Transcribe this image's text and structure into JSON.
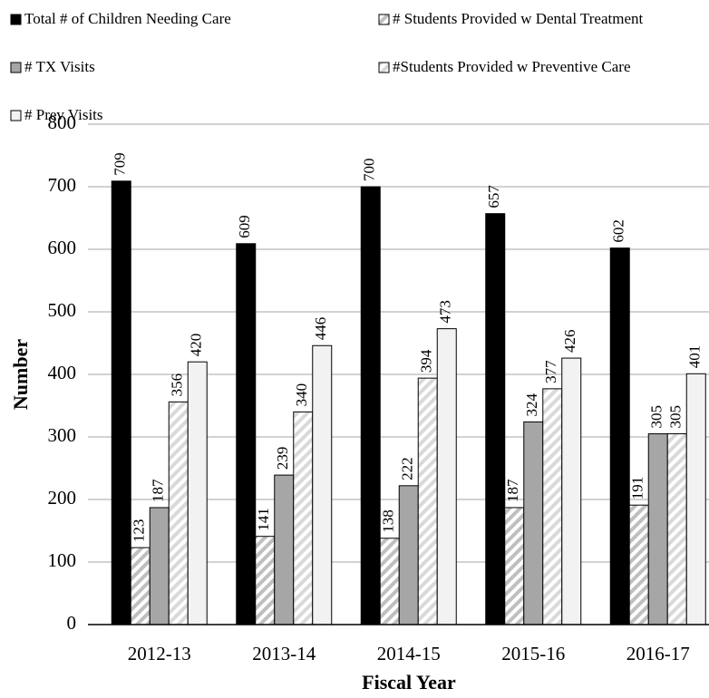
{
  "chart_data": {
    "type": "bar",
    "categories": [
      "2012-13",
      "2013-14",
      "2014-15",
      "2015-16",
      "2016-17"
    ],
    "series": [
      {
        "name": "Total # of Children Needing Care",
        "color": "#000000",
        "hatch": false,
        "values": [
          709,
          609,
          700,
          657,
          602
        ]
      },
      {
        "name": "# Students Provided w Dental Treatment",
        "color": "#bfbfbf",
        "hatch": true,
        "values": [
          123,
          141,
          138,
          187,
          191
        ]
      },
      {
        "name": "# TX Visits",
        "color": "#a6a6a6",
        "hatch": false,
        "values": [
          187,
          239,
          222,
          324,
          305
        ]
      },
      {
        "name": "#Students Provided w Preventive Care",
        "color": "#d9d9d9",
        "hatch": true,
        "values": [
          356,
          340,
          394,
          377,
          305
        ]
      },
      {
        "name": "# Prev Visits",
        "color": "#f2f2f2",
        "hatch": false,
        "values": [
          420,
          446,
          473,
          426,
          401
        ]
      }
    ],
    "xlabel": "Fiscal Year",
    "ylabel": "Number",
    "ylim": [
      0,
      800
    ],
    "yticks": [
      0,
      100,
      200,
      300,
      400,
      500,
      600,
      700,
      800
    ],
    "grid": true,
    "legend": "top"
  }
}
